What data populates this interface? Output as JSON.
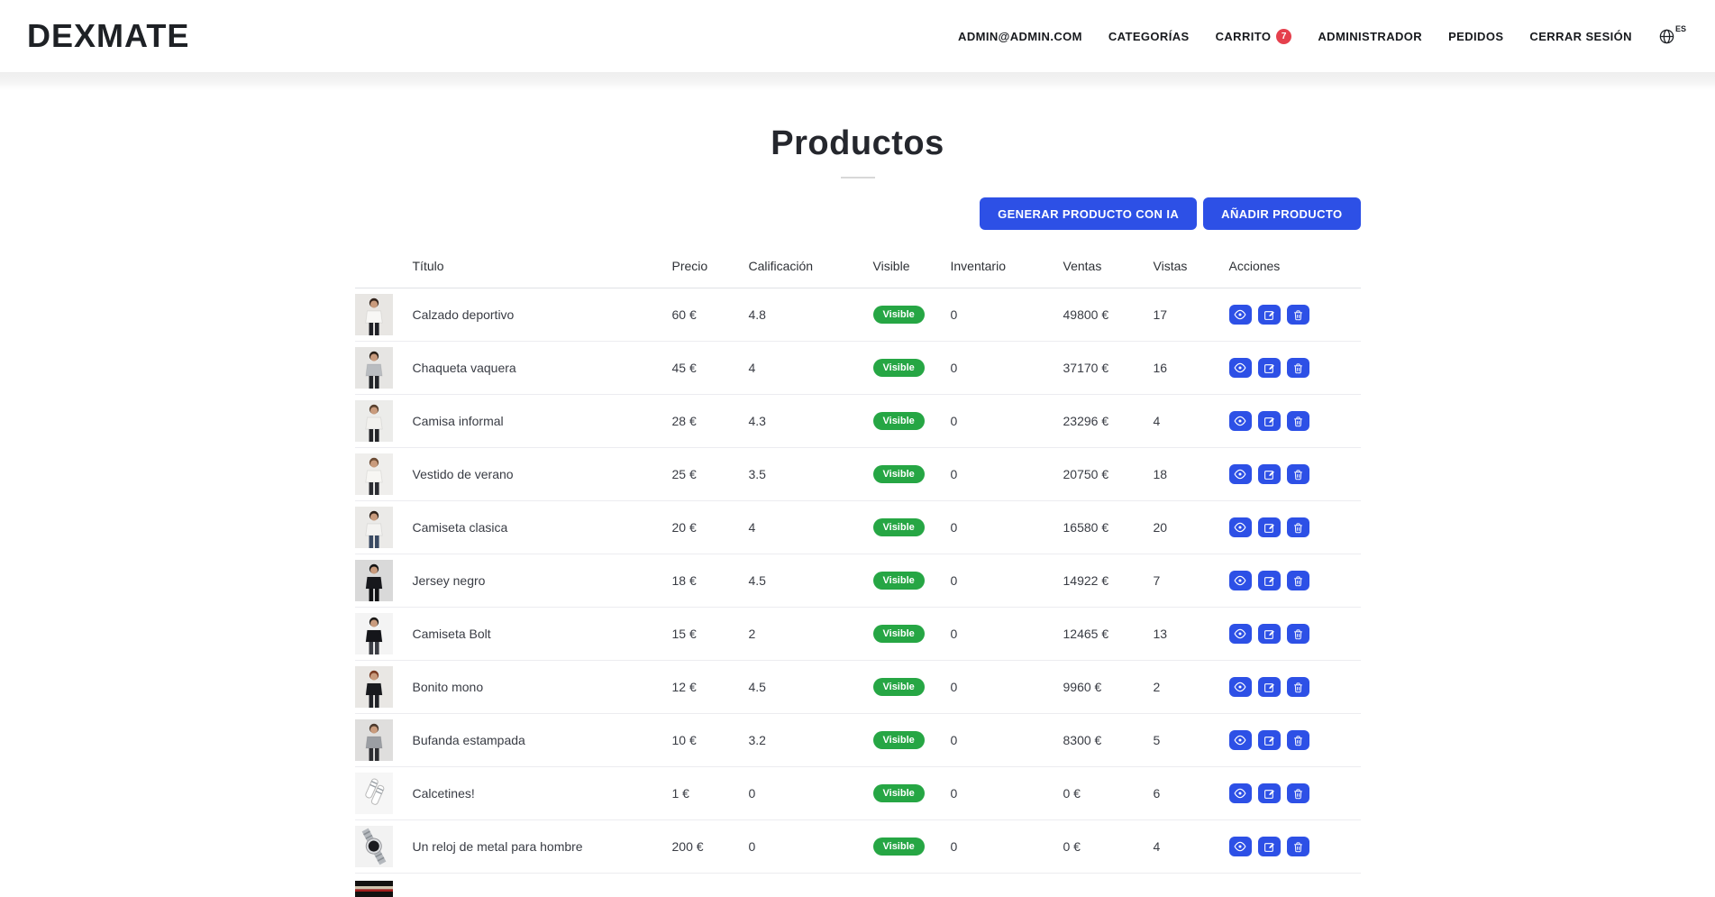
{
  "brand": "DEXMATE",
  "nav": {
    "items": [
      {
        "label": "ADMIN@ADMIN.COM"
      },
      {
        "label": "CATEGORÍAS"
      },
      {
        "label": "CARRITO",
        "badge": "7"
      },
      {
        "label": "ADMINISTRADOR"
      },
      {
        "label": "PEDIDOS"
      },
      {
        "label": "CERRAR SESIÓN"
      }
    ],
    "language": "ES"
  },
  "page": {
    "title": "Productos"
  },
  "toolbar": {
    "generate_ai_label": "GENERAR PRODUCTO CON IA",
    "add_product_label": "AÑADIR PRODUCTO"
  },
  "colors": {
    "accent_blue": "#2d50e6",
    "success_green": "#26a644",
    "badge_red": "#e5404d"
  },
  "table": {
    "columns": [
      "Título",
      "Precio",
      "Calificación",
      "Visible",
      "Inventario",
      "Ventas",
      "Vistas",
      "Acciones"
    ],
    "rows": [
      {
        "title": "Calzado deportivo",
        "price": "60 €",
        "rating": "4.8",
        "visible": "Visible",
        "inventory": "0",
        "sales": "49800 €",
        "views": "17",
        "thumb": {
          "type": "person",
          "bg": "#e8e6e3",
          "hair": "#33241c",
          "shirt": "#f8f7f5",
          "pants": "#1f2026"
        }
      },
      {
        "title": "Chaqueta vaquera",
        "price": "45 €",
        "rating": "4",
        "visible": "Visible",
        "inventory": "0",
        "sales": "37170 €",
        "views": "16",
        "thumb": {
          "type": "person",
          "bg": "#e6e5e3",
          "hair": "#2a2018",
          "shirt": "#b9bcc0",
          "pants": "#23252a"
        }
      },
      {
        "title": "Camisa informal",
        "price": "28 €",
        "rating": "4.3",
        "visible": "Visible",
        "inventory": "0",
        "sales": "23296 €",
        "views": "4",
        "thumb": {
          "type": "person",
          "bg": "#ececea",
          "hair": "#58402e",
          "shirt": "#f2f1ee",
          "pants": "#232428"
        }
      },
      {
        "title": "Vestido de verano",
        "price": "25 €",
        "rating": "3.5",
        "visible": "Visible",
        "inventory": "0",
        "sales": "20750 €",
        "views": "18",
        "thumb": {
          "type": "person",
          "bg": "#efeeec",
          "hair": "#6b4a33",
          "shirt": "#f7f6f3",
          "pants": "#2c2d33"
        }
      },
      {
        "title": "Camiseta clasica",
        "price": "20 €",
        "rating": "4",
        "visible": "Visible",
        "inventory": "0",
        "sales": "16580 €",
        "views": "20",
        "thumb": {
          "type": "person",
          "bg": "#ebeae8",
          "hair": "#2e2119",
          "shirt": "#f4f3f1",
          "pants": "#3a4a63"
        }
      },
      {
        "title": "Jersey negro",
        "price": "18 €",
        "rating": "4.5",
        "visible": "Visible",
        "inventory": "0",
        "sales": "14922 €",
        "views": "7",
        "thumb": {
          "type": "person",
          "bg": "#d9d9d9",
          "hair": "#141414",
          "shirt": "#17181c",
          "pants": "#101114"
        }
      },
      {
        "title": "Camiseta Bolt",
        "price": "15 €",
        "rating": "2",
        "visible": "Visible",
        "inventory": "0",
        "sales": "12465 €",
        "views": "13",
        "thumb": {
          "type": "person",
          "bg": "#f4f4f4",
          "hair": "#1c1a18",
          "shirt": "#15161a",
          "pants": "#3c3e45"
        }
      },
      {
        "title": "Bonito mono",
        "price": "12 €",
        "rating": "4.5",
        "visible": "Visible",
        "inventory": "0",
        "sales": "9960 €",
        "views": "2",
        "thumb": {
          "type": "person",
          "bg": "#e9e7e4",
          "hair": "#7a3b22",
          "shirt": "#191a1e",
          "pants": "#202127"
        }
      },
      {
        "title": "Bufanda estampada",
        "price": "10 €",
        "rating": "3.2",
        "visible": "Visible",
        "inventory": "0",
        "sales": "8300 €",
        "views": "5",
        "thumb": {
          "type": "person",
          "bg": "#dfdedd",
          "hair": "#4a382c",
          "shirt": "#9b9ea3",
          "pants": "#2c2d31"
        }
      },
      {
        "title": "Calcetines!",
        "price": "1 €",
        "rating": "0",
        "visible": "Visible",
        "inventory": "0",
        "sales": "0 €",
        "views": "6",
        "thumb": {
          "type": "socks",
          "bg": "#f6f6f6"
        }
      },
      {
        "title": "Un reloj de metal para hombre",
        "price": "200 €",
        "rating": "0",
        "visible": "Visible",
        "inventory": "0",
        "sales": "0 €",
        "views": "4",
        "thumb": {
          "type": "watch",
          "bg": "#f2f2f2"
        }
      },
      {
        "partial": true,
        "thumb": {
          "type": "hat",
          "bg": "#121110",
          "stripe": "#a31c1c",
          "band": "#cfc4ae"
        }
      }
    ]
  }
}
